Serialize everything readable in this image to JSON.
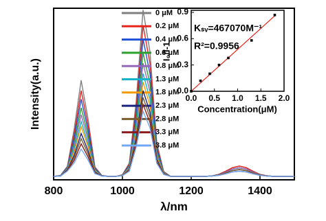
{
  "chart_data": [
    {
      "type": "line",
      "xlabel": "λ/nm",
      "ylabel": "Intensity(a.u.)",
      "xlim": [
        800,
        1500
      ],
      "xticks": [
        800,
        1000,
        1200,
        1400
      ],
      "ylim": [
        0,
        100
      ],
      "x": [
        800,
        820,
        840,
        860,
        880,
        900,
        920,
        940,
        960,
        980,
        1000,
        1020,
        1040,
        1060,
        1080,
        1100,
        1120,
        1140,
        1160,
        1180,
        1200,
        1220,
        1240,
        1260,
        1280,
        1300,
        1320,
        1340,
        1360,
        1380,
        1400,
        1420,
        1440,
        1460,
        1480,
        1500
      ],
      "series": [
        {
          "name": "0 μM",
          "color": "#7f7f7f",
          "values": [
            2,
            2.6,
            7.9,
            30,
            58,
            35.6,
            7.6,
            2.6,
            2,
            2,
            3,
            9.8,
            45.7,
            99,
            74.8,
            21.4,
            4.9,
            2,
            2,
            2,
            2,
            2,
            2,
            2.3,
            3.2,
            5,
            7.1,
            8,
            7.1,
            5,
            3.2,
            2.4,
            2,
            2,
            2,
            2
          ]
        },
        {
          "name": "0.2 μM",
          "color": "#e8231c",
          "values": [
            2,
            2.5,
            7.5,
            27,
            52,
            32,
            7,
            2.5,
            2,
            2,
            2.9,
            9,
            41.6,
            90,
            68,
            19.6,
            4.6,
            2,
            2,
            2,
            2,
            2,
            2,
            2.3,
            3.2,
            5,
            7.1,
            8,
            7.1,
            5,
            3.2,
            2.4,
            2,
            2,
            2,
            2
          ]
        },
        {
          "name": "0.4 μM",
          "color": "#1f4fd8",
          "values": [
            2,
            2.5,
            7.2,
            24.5,
            47,
            29,
            6.5,
            2.5,
            2,
            2,
            2.8,
            8.4,
            38,
            82,
            62,
            18,
            4.4,
            2,
            2,
            2,
            2,
            2,
            2,
            2.3,
            3,
            4.5,
            6.3,
            7,
            6.3,
            4.5,
            3,
            2.3,
            2,
            2,
            2,
            2
          ]
        },
        {
          "name": "0.6 μM",
          "color": "#2ca02c",
          "values": [
            2,
            2.4,
            6.8,
            22,
            42,
            26,
            6,
            2.4,
            2,
            2,
            2.7,
            7.8,
            34.4,
            74,
            56,
            16.4,
            4.2,
            2,
            2,
            2,
            2,
            2,
            2,
            2.3,
            3,
            4.5,
            6.3,
            7,
            6.3,
            4.5,
            3,
            2.3,
            2,
            2,
            2,
            2
          ]
        },
        {
          "name": "0.8 μM",
          "color": "#9467bd",
          "values": [
            2,
            2.4,
            6.5,
            20,
            38,
            23.6,
            5.6,
            2.4,
            2,
            2,
            2.7,
            7.3,
            31.7,
            68,
            51.5,
            15.2,
            4,
            2,
            2,
            2,
            2,
            2,
            2,
            2.3,
            3,
            4.5,
            6.3,
            7,
            6.3,
            4.5,
            3,
            2.3,
            2,
            2,
            2,
            2
          ]
        },
        {
          "name": "1.3 μM",
          "color": "#17b3c9",
          "values": [
            2,
            2.3,
            6.2,
            18,
            34,
            21.2,
            5.2,
            2.3,
            2,
            2,
            2.6,
            6.8,
            29,
            62,
            47,
            14,
            3.8,
            2,
            2,
            2,
            2,
            2,
            2,
            2.2,
            2.8,
            4,
            5.4,
            6,
            5.4,
            4,
            2.8,
            2.2,
            2,
            2,
            2,
            2
          ]
        },
        {
          "name": "1.8 μM",
          "color": "#f59b00",
          "values": [
            2,
            2.3,
            6,
            16.5,
            31,
            19.4,
            4.9,
            2.3,
            2,
            2,
            2.6,
            6.4,
            26.8,
            57,
            43.3,
            13,
            3.7,
            2,
            2,
            2,
            2,
            2,
            2,
            2.2,
            2.8,
            4,
            5.4,
            6,
            5.4,
            4,
            2.8,
            2.2,
            2,
            2,
            2,
            2
          ]
        },
        {
          "name": "2.3 μM",
          "color": "#1a237e",
          "values": [
            2,
            2.3,
            5.8,
            14.5,
            27,
            17,
            4.5,
            2.3,
            2,
            2,
            2.5,
            6,
            24.5,
            52,
            39.5,
            12,
            3.5,
            2,
            2,
            2,
            2,
            2,
            2,
            2.2,
            2.8,
            4,
            5.4,
            6,
            5.4,
            4,
            2.8,
            2.2,
            2,
            2,
            2,
            2
          ]
        },
        {
          "name": "2.8 μM",
          "color": "#7a5c2e",
          "values": [
            2,
            2.2,
            5.5,
            13,
            24,
            15.2,
            4.2,
            2.2,
            2,
            2,
            2.5,
            5.7,
            22.7,
            48,
            36.5,
            11.2,
            3.4,
            2,
            2,
            2,
            2,
            2,
            2,
            2.2,
            2.8,
            4,
            5.4,
            6,
            5.4,
            4,
            2.8,
            2.2,
            2,
            2,
            2,
            2
          ]
        },
        {
          "name": "3.3 μM",
          "color": "#8b1a1a",
          "values": [
            2,
            2.2,
            5.3,
            11.5,
            21,
            13.4,
            3.9,
            2.2,
            2,
            2,
            2.4,
            5.4,
            20.9,
            44,
            33.5,
            10.4,
            3.3,
            2,
            2,
            2,
            2,
            2,
            2,
            2.2,
            2.6,
            3.5,
            4.6,
            5,
            4.6,
            3.5,
            2.6,
            2.2,
            2,
            2,
            2,
            2
          ]
        },
        {
          "name": "3.8 μM",
          "color": "#6fa8f5",
          "values": [
            2,
            2.2,
            5.1,
            10,
            18,
            11.6,
            3.6,
            2.2,
            2,
            2,
            2.4,
            5,
            19.1,
            40,
            30.5,
            9.6,
            3.1,
            2,
            2,
            2,
            2,
            2,
            2,
            2.2,
            2.6,
            3.5,
            4.6,
            5,
            4.6,
            3.5,
            2.6,
            2.2,
            2,
            2,
            2,
            2
          ]
        }
      ]
    },
    {
      "type": "scatter",
      "xlabel": "Concentration(μM)",
      "ylabel": "I₀/I-1",
      "xlim": [
        0,
        2
      ],
      "xticks": [
        {
          "value": 0,
          "label": "0.0"
        },
        {
          "value": 0.5,
          "label": "0.5"
        },
        {
          "value": 1,
          "label": "1.0"
        },
        {
          "value": 1.5,
          "label": "1.5"
        },
        {
          "value": 2,
          "label": "2.0"
        }
      ],
      "ylim": [
        0,
        0.9
      ],
      "yticks": [
        {
          "value": 0,
          "label": "0.0"
        },
        {
          "value": 0.3,
          "label": "0.3"
        },
        {
          "value": 0.6,
          "label": "0.6"
        },
        {
          "value": 0.9,
          "label": "0.9"
        }
      ],
      "annotations": [
        "Kₛᵥ=467070M⁻¹",
        "R²=0.9956"
      ],
      "color": "#000000",
      "x": [
        0,
        0.2,
        0.4,
        0.6,
        0.8,
        1.3,
        1.8
      ],
      "values": [
        0,
        0.12,
        0.2,
        0.3,
        0.38,
        0.58,
        0.87
      ],
      "fit": {
        "color": "#e8231c",
        "x": [
          0,
          1.8
        ],
        "values": [
          0,
          0.86
        ]
      }
    }
  ]
}
